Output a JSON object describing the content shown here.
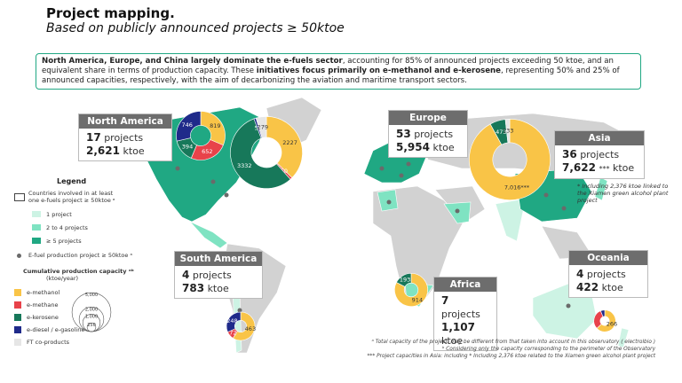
{
  "header": {
    "title": "Project mapping.",
    "subtitle": "Based on publicly announced projects ≥ 50ktoe"
  },
  "summary": [
    "North America, Europe, and China largely dominate the e-fuels sector",
    ", accounting for 85% of announced projects exceeding 50 ktoe, and an equivalent share in terms of production capacity. These ",
    "initiatives focus primarily on e-methanol and e-kerosene",
    ", representing 50% and 25% of announced capacities, respectively, with the aim of decarbonizing the aviation and maritime transport sectors."
  ],
  "regions": [
    {
      "name": "North America",
      "projects": 17,
      "projects_label": "projects",
      "capacity": {
        "value": 2621,
        "label": "2,621"
      },
      "unit": "ktoe",
      "segments": [
        {
          "value": 819,
          "color": "#f9c447"
        },
        {
          "value": 652,
          "color": "#e8424a"
        },
        {
          "value": 394,
          "color": "#17785a"
        },
        {
          "value": 746,
          "color": "#1f2a8a"
        }
      ]
    },
    {
      "name": "Europe",
      "projects": 53,
      "projects_label": "projects",
      "capacity": {
        "value": 5954,
        "label": "5,954"
      },
      "unit": "ktoe",
      "segments": [
        {
          "value": 2227,
          "color": "#f9c447"
        },
        {
          "value": 60,
          "color": "#e8424a"
        },
        {
          "value": 3332,
          "color": "#17785a"
        },
        {
          "value": 56,
          "color": "#1f2a8a"
        },
        {
          "value": 279,
          "color": "#e6e6e6"
        }
      ]
    },
    {
      "name": "Asia",
      "projects": 36,
      "projects_label": "projects",
      "capacity": {
        "value": 7622,
        "label": "7,622"
      },
      "capacity_note": "***",
      "unit": "ktoe",
      "segments": [
        {
          "value": 7016,
          "label": "7,016***",
          "color": "#f9c447"
        },
        {
          "value": 473,
          "color": "#17785a"
        },
        {
          "value": 133,
          "color": "#e6e6e6"
        }
      ]
    },
    {
      "name": "South America",
      "projects": 4,
      "projects_label": "projects",
      "capacity": {
        "value": 783,
        "label": "783"
      },
      "unit": "ktoe",
      "segments": [
        {
          "value": 463,
          "color": "#f9c447"
        },
        {
          "value": 72,
          "color": "#e8424a"
        },
        {
          "value": 248,
          "color": "#1f2a8a"
        }
      ]
    },
    {
      "name": "Africa",
      "projects": 7,
      "projects_label": "projects",
      "capacity": {
        "value": 1107,
        "label": "1,107"
      },
      "unit": "ktoe",
      "segments": [
        {
          "value": 914,
          "color": "#f9c447"
        },
        {
          "value": 193,
          "color": "#17785a"
        }
      ]
    },
    {
      "name": "Oceania",
      "projects": 4,
      "projects_label": "projects",
      "capacity": {
        "value": 422,
        "label": "422"
      },
      "unit": "ktoe",
      "segments": [
        {
          "value": 266,
          "color": "#f9c447"
        },
        {
          "value": 130,
          "color": "#e8424a",
          "label": null
        },
        {
          "value": 26,
          "color": "#1f2a8a",
          "label": null
        }
      ]
    }
  ],
  "asia_note": "* Including 2,376 ktoe linked to the Xiamen green alcohol plant project",
  "legend": {
    "title": "Legend",
    "countries": "Countries involved in at least one e-fuels project ≥ 50ktoe ᵃ",
    "levels": [
      {
        "label": "1 project",
        "color": "#cdf3e4"
      },
      {
        "label": "2 to 4 projects",
        "color": "#7fe3c2"
      },
      {
        "label": "≥ 5 projects",
        "color": "#20a883"
      }
    ],
    "dot": "E-fuel production project ≥ 50ktoe ᵃ",
    "capacity_title": "Cumulative production capacity ᵃᵇ",
    "capacity_unit": "(ktoe/year)",
    "sizes": [
      {
        "value": 5000,
        "label": "5,000"
      },
      {
        "value": 2000,
        "label": "2,000"
      },
      {
        "value": 1000,
        "label": "1,000"
      },
      250
    ],
    "fuels": [
      {
        "label": "e-methanol",
        "color": "#f9c447"
      },
      {
        "label": "e-methane",
        "color": "#e8424a"
      },
      {
        "label": "e-kerosene",
        "color": "#17785a"
      },
      {
        "label": "e-diesel / e-gasoline",
        "color": "#1f2a8a"
      },
      {
        "label": "FT co-products",
        "color": "#e6e6e6"
      }
    ]
  },
  "footnotes": [
    "ᵃ Total capacity of the project, may be different from that taken into account in this observatory ( electrolbio )",
    "ᵇ Considering only the capacity corresponding to the perimeter of the Observatory",
    "*** Project capacities in Asia: including * Including 2,376 ktoe related to the Xiamen green alcohol plant project"
  ]
}
